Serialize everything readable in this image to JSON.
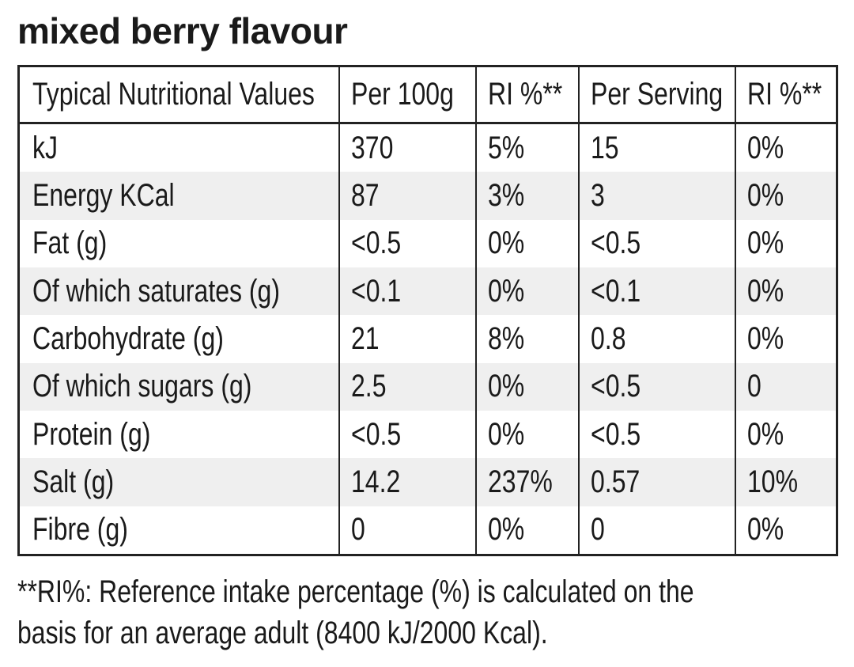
{
  "title": "mixed berry flavour",
  "table": {
    "header": [
      "Typical Nutritional Values",
      "Per 100g",
      "RI %**",
      "Per Serving",
      "RI %**"
    ],
    "rows": [
      [
        "kJ",
        "370",
        "5%",
        "15",
        "0%"
      ],
      [
        "Energy KCal",
        "87",
        "3%",
        "3",
        "0%"
      ],
      [
        "Fat (g)",
        "<0.5",
        "0%",
        "<0.5",
        "0%"
      ],
      [
        "Of which saturates (g)",
        "<0.1",
        "0%",
        "<0.1",
        "0%"
      ],
      [
        "Carbohydrate (g)",
        "21",
        "8%",
        "0.8",
        "0%"
      ],
      [
        "Of which sugars (g)",
        "2.5",
        "0%",
        "<0.5",
        "0"
      ],
      [
        "Protein (g)",
        "<0.5",
        "0%",
        "<0.5",
        "0%"
      ],
      [
        "Salt (g)",
        "14.2",
        "237%",
        "0.57",
        "10%"
      ],
      [
        "Fibre (g)",
        "0",
        "0%",
        "0",
        "0%"
      ]
    ]
  },
  "footnote": [
    "**RI%: Reference intake percentage (%) is calculated on the",
    "basis for an average adult (8400 kJ/2000 Kcal)."
  ]
}
